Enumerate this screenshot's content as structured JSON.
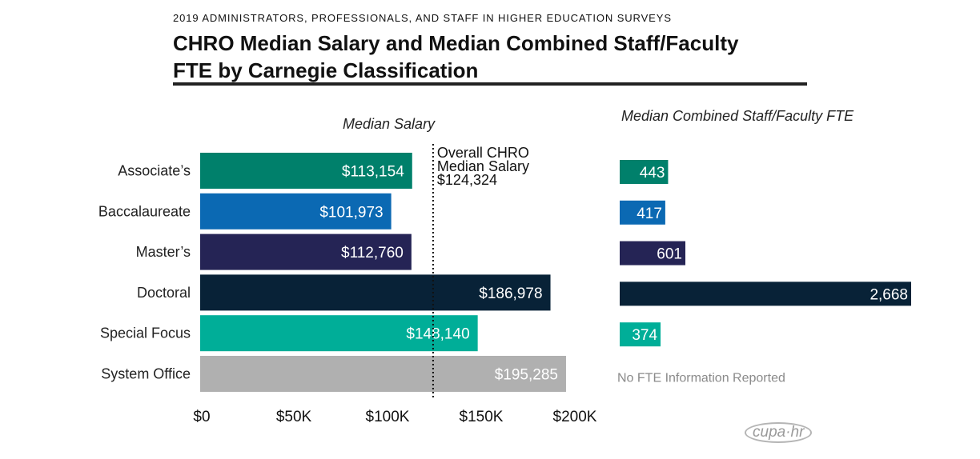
{
  "header": {
    "supertitle": "2019 ADMINISTRATORS, PROFESSIONALS, AND STAFF IN HIGHER EDUCATION SURVEYS",
    "title_line1": "CHRO Median Salary and Median Combined Staff/Faculty",
    "title_line2": "FTE by Carnegie Classification"
  },
  "logo": {
    "text": "cupa·hr"
  },
  "chart_data": [
    {
      "type": "bar",
      "orientation": "horizontal",
      "title": "Median Salary",
      "categories": [
        "Associate’s",
        "Baccalaureate",
        "Master’s",
        "Doctoral",
        "Special Focus",
        "System Office"
      ],
      "values": [
        113154,
        101973,
        112760,
        186978,
        148140,
        195285
      ],
      "value_labels": [
        "$113,154",
        "$101,973",
        "$112,760",
        "$186,978",
        "$148,140",
        "$195,285"
      ],
      "colors": [
        "#00806b",
        "#0b69b3",
        "#252455",
        "#082237",
        "#00ae98",
        "#b0b0b0"
      ],
      "xlim": [
        0,
        200000
      ],
      "xticks": [
        0,
        50000,
        100000,
        150000,
        200000
      ],
      "xtick_labels": [
        "$0",
        "$50K",
        "$100K",
        "$150K",
        "$200K"
      ],
      "xlabel": "",
      "ylabel": "",
      "reference_line": {
        "value": 124324,
        "style": "dotted",
        "label_lines": [
          "Overall CHRO",
          "Median Salary",
          "$124,324"
        ]
      },
      "grid": false
    },
    {
      "type": "bar",
      "orientation": "horizontal",
      "title": "Median Combined Staff/Faculty FTE",
      "categories": [
        "Associate’s",
        "Baccalaureate",
        "Master’s",
        "Doctoral",
        "Special Focus",
        "System Office"
      ],
      "values": [
        443,
        417,
        601,
        2668,
        374,
        null
      ],
      "value_labels": [
        "443",
        "417",
        "601",
        "2,668",
        "374",
        ""
      ],
      "colors": [
        "#00806b",
        "#0b69b3",
        "#252455",
        "#082237",
        "#00ae98",
        "#b0b0b0"
      ],
      "missing_note": "No FTE Information Reported",
      "xlim": [
        0,
        2668
      ],
      "grid": false
    }
  ]
}
